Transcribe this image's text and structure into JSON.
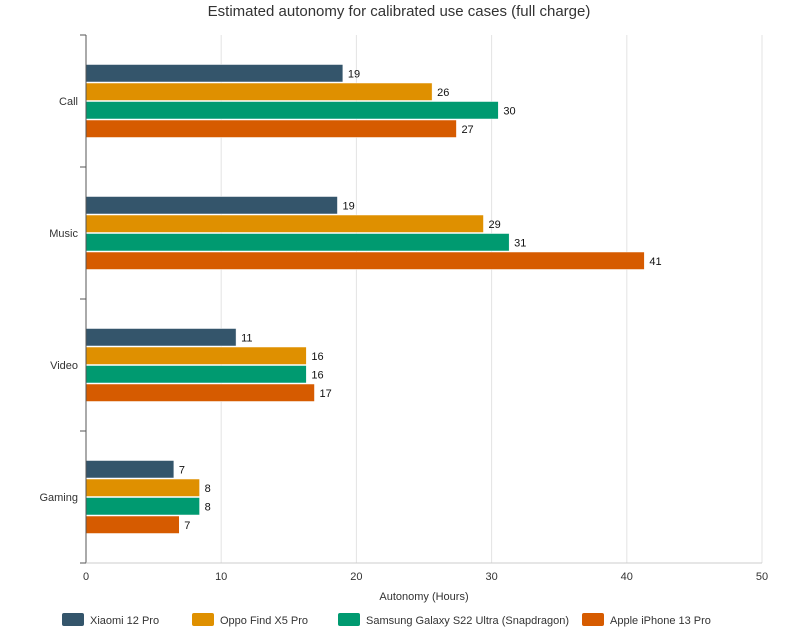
{
  "chart_data": {
    "type": "bar",
    "orientation": "horizontal",
    "title": "Estimated autonomy for calibrated use cases (full charge)",
    "xlabel": "Autonomy (Hours)",
    "ylabel": "",
    "xlim": [
      0,
      50
    ],
    "xticks": [
      0,
      10,
      20,
      30,
      40,
      50
    ],
    "grid": true,
    "legend_position": "bottom",
    "categories": [
      "Call",
      "Music",
      "Video",
      "Gaming"
    ],
    "series": [
      {
        "name": "Xiaomi 12 Pro",
        "color": "#34556b",
        "values": [
          19,
          19,
          11,
          7
        ],
        "actual": [
          19,
          18.6,
          11.1,
          6.5
        ]
      },
      {
        "name": "Oppo Find X5 Pro",
        "color": "#df9000",
        "values": [
          26,
          29,
          16,
          8
        ],
        "actual": [
          25.6,
          29.4,
          16.3,
          8.4
        ]
      },
      {
        "name": "Samsung Galaxy S22 Ultra (Snapdragon)",
        "color": "#009a70",
        "values": [
          30,
          31,
          16,
          8
        ],
        "actual": [
          30.5,
          31.3,
          16.3,
          8.4
        ]
      },
      {
        "name": "Apple iPhone 13 Pro",
        "color": "#d65b00",
        "values": [
          27,
          41,
          17,
          7
        ],
        "actual": [
          27.4,
          41.3,
          16.9,
          6.9
        ]
      }
    ]
  }
}
